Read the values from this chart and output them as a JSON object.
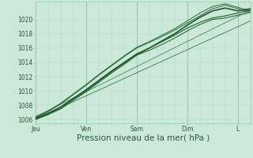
{
  "xlabel": "Pression niveau de la mer( hPa )",
  "bg_color": "#cce8d8",
  "grid_color_major": "#99ccaa",
  "grid_color_minor": "#b8ddc8",
  "line_color": "#1a5c2a",
  "ylim": [
    1005.5,
    1022.5
  ],
  "yticks": [
    1006,
    1008,
    1010,
    1012,
    1014,
    1016,
    1018,
    1020
  ],
  "x_labels": [
    "Jeu",
    "Ven",
    "Sam",
    "Dim",
    "L"
  ],
  "x_positions": [
    0,
    24,
    48,
    72,
    96
  ],
  "total_hours": 102,
  "lines": [
    {
      "x": [
        0,
        6,
        12,
        18,
        24,
        30,
        36,
        42,
        48,
        54,
        60,
        66,
        72,
        78,
        84,
        90,
        96,
        102
      ],
      "y": [
        1006.2,
        1006.9,
        1007.8,
        1009.0,
        1010.2,
        1011.5,
        1012.8,
        1014.0,
        1015.2,
        1016.0,
        1016.9,
        1017.8,
        1018.8,
        1019.6,
        1020.2,
        1020.5,
        1020.9,
        1021.3
      ],
      "lw": 0.8,
      "alpha": 1.0,
      "style": "-"
    },
    {
      "x": [
        0,
        6,
        12,
        18,
        24,
        30,
        36,
        42,
        48,
        54,
        60,
        66,
        72,
        78,
        84,
        90,
        96,
        102
      ],
      "y": [
        1006.3,
        1007.1,
        1008.2,
        1009.5,
        1010.8,
        1012.2,
        1013.5,
        1014.8,
        1016.0,
        1016.8,
        1017.6,
        1018.5,
        1019.5,
        1020.5,
        1021.5,
        1022.0,
        1021.5,
        1021.0
      ],
      "lw": 0.7,
      "alpha": 0.9,
      "style": "-"
    },
    {
      "x": [
        0,
        6,
        12,
        18,
        24,
        30,
        36,
        42,
        48,
        54,
        60,
        66,
        72,
        78,
        84,
        90,
        96,
        102
      ],
      "y": [
        1006.0,
        1006.7,
        1007.5,
        1008.7,
        1009.9,
        1011.2,
        1012.5,
        1013.7,
        1015.0,
        1015.7,
        1016.5,
        1017.4,
        1018.4,
        1019.3,
        1020.0,
        1020.2,
        1020.6,
        1021.0
      ],
      "lw": 0.7,
      "alpha": 1.0,
      "style": "-"
    },
    {
      "x": [
        0,
        6,
        12,
        18,
        24,
        30,
        36,
        42,
        48,
        54,
        60,
        66,
        72,
        78,
        84,
        90,
        96,
        102
      ],
      "y": [
        1006.1,
        1006.8,
        1007.7,
        1008.9,
        1010.1,
        1011.4,
        1012.7,
        1013.9,
        1015.1,
        1016.0,
        1017.0,
        1018.0,
        1019.2,
        1020.3,
        1021.2,
        1021.6,
        1021.2,
        1021.5
      ],
      "lw": 1.2,
      "alpha": 1.0,
      "style": "-"
    },
    {
      "x": [
        0,
        6,
        12,
        18,
        24,
        30,
        36,
        42,
        48,
        54,
        60,
        66,
        72,
        78,
        84,
        90,
        96,
        102
      ],
      "y": [
        1006.4,
        1007.2,
        1008.3,
        1009.6,
        1010.9,
        1012.3,
        1013.6,
        1014.9,
        1016.1,
        1016.9,
        1017.8,
        1018.7,
        1019.8,
        1020.9,
        1021.8,
        1022.2,
        1021.7,
        1021.2
      ],
      "lw": 0.7,
      "alpha": 0.9,
      "style": "-"
    },
    {
      "x": [
        0,
        102
      ],
      "y": [
        1006.1,
        1019.8
      ],
      "lw": 0.7,
      "alpha": 0.7,
      "style": "-"
    },
    {
      "x": [
        0,
        102
      ],
      "y": [
        1006.4,
        1021.3
      ],
      "lw": 0.7,
      "alpha": 0.6,
      "style": "-"
    }
  ],
  "tick_fontsize": 5.5,
  "xlabel_fontsize": 7.5
}
